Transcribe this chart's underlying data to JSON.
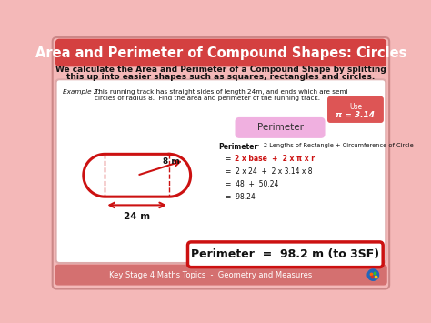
{
  "title": "Area and Perimeter of Compound Shapes: Circles",
  "subtitle_line1": "We calculate the Area and Perimeter of a Compound Shape by splitting",
  "subtitle_line2": "this up into easier shapes such as squares, rectangles and circles.",
  "example_label": "Example 2:",
  "example_text_line1": "This running track has straight sides of length 24m, and ends which are semi",
  "example_text_line2": "circles of radius 8.  Find the area and perimeter of the running track.",
  "dim_8m": "8 m",
  "dim_24m": "24 m",
  "calc_line1a": "Perimeter",
  "calc_line1b": " =  2 Lengths of Rectangle + Circumference of Circle",
  "calc_line2eq": "=  ",
  "calc_line2red": "2 x base  +  2 x π x r",
  "calc_line3": "=  2 x 24  +  2 x 3.14 x 8",
  "calc_line4": "=  48  +  50.24",
  "calc_line5": "=  98.24",
  "result_text": "Perimeter  =  98.2 m (to 3SF)",
  "footer_text": "Key Stage 4 Maths Topics  -  Geometry and Measures",
  "bg_color": "#f4b8b8",
  "title_bg": "#d44040",
  "title_color": "#ffffff",
  "red_color": "#cc1111",
  "perimeter_tab_bg": "#f0b0e0",
  "use_bg": "#dd5555",
  "footer_bg": "#d47070",
  "white": "#ffffff",
  "dark": "#222222",
  "content_border": "#ddaaaa"
}
